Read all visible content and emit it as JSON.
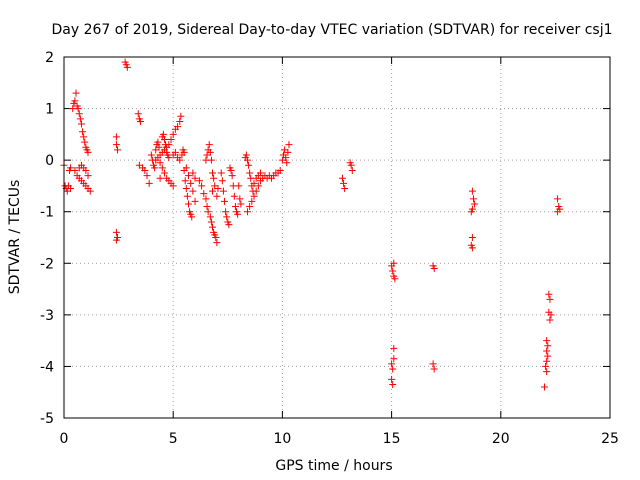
{
  "chart_data": {
    "type": "scatter",
    "title": "Day 267 of 2019, Sidereal Day-to-day VTEC variation (SDTVAR) for receiver csj1",
    "xlabel": "GPS time / hours",
    "ylabel": "SDTVAR / TECUs",
    "xlim": [
      0,
      25
    ],
    "ylim": [
      -5,
      2
    ],
    "xticks": [
      0,
      5,
      10,
      15,
      20,
      25
    ],
    "yticks": [
      -5,
      -4,
      -3,
      -2,
      -1,
      0,
      1,
      2
    ],
    "xtick_labels": [
      "0",
      "5",
      "10",
      "15",
      "20",
      "25"
    ],
    "ytick_labels": [
      "-5",
      "-4",
      "-3",
      "-2",
      "-1",
      "0",
      "1",
      "2"
    ],
    "grid": true,
    "marker": "+",
    "color": "#ff0000",
    "series": [
      {
        "name": "SDTVAR",
        "points": [
          [
            0.0,
            -0.1
          ],
          [
            0.05,
            -0.5
          ],
          [
            0.1,
            -0.55
          ],
          [
            0.15,
            -0.6
          ],
          [
            0.2,
            -0.5
          ],
          [
            0.25,
            -0.2
          ],
          [
            0.3,
            -0.15
          ],
          [
            0.3,
            -0.55
          ],
          [
            0.4,
            1.0
          ],
          [
            0.45,
            1.1
          ],
          [
            0.5,
            1.15
          ],
          [
            0.55,
            1.3
          ],
          [
            0.6,
            1.05
          ],
          [
            0.65,
            1.0
          ],
          [
            0.7,
            0.9
          ],
          [
            0.75,
            0.8
          ],
          [
            0.8,
            0.7
          ],
          [
            0.85,
            0.55
          ],
          [
            0.9,
            0.45
          ],
          [
            0.95,
            0.35
          ],
          [
            1.0,
            0.25
          ],
          [
            1.05,
            0.2
          ],
          [
            1.1,
            0.15
          ],
          [
            0.5,
            -0.2
          ],
          [
            0.6,
            -0.3
          ],
          [
            0.7,
            -0.35
          ],
          [
            0.8,
            -0.4
          ],
          [
            0.9,
            -0.45
          ],
          [
            1.0,
            -0.5
          ],
          [
            1.1,
            -0.55
          ],
          [
            1.2,
            -0.6
          ],
          [
            0.7,
            -0.15
          ],
          [
            0.8,
            -0.1
          ],
          [
            0.9,
            -0.15
          ],
          [
            1.0,
            -0.2
          ],
          [
            1.1,
            -0.3
          ],
          [
            2.4,
            0.45
          ],
          [
            2.4,
            0.3
          ],
          [
            2.45,
            0.2
          ],
          [
            2.4,
            -1.4
          ],
          [
            2.45,
            -1.5
          ],
          [
            2.4,
            -1.55
          ],
          [
            2.8,
            1.9
          ],
          [
            2.85,
            1.85
          ],
          [
            2.9,
            1.8
          ],
          [
            3.4,
            0.9
          ],
          [
            3.45,
            0.8
          ],
          [
            3.5,
            0.75
          ],
          [
            3.45,
            -0.1
          ],
          [
            3.6,
            -0.15
          ],
          [
            3.7,
            -0.2
          ],
          [
            3.8,
            -0.3
          ],
          [
            3.9,
            -0.45
          ],
          [
            4.0,
            0.1
          ],
          [
            4.05,
            0.0
          ],
          [
            4.1,
            -0.1
          ],
          [
            4.15,
            -0.15
          ],
          [
            4.2,
            0.2
          ],
          [
            4.25,
            0.3
          ],
          [
            4.3,
            0.35
          ],
          [
            4.35,
            0.25
          ],
          [
            4.4,
            -0.35
          ],
          [
            4.5,
            0.45
          ],
          [
            4.55,
            0.5
          ],
          [
            4.6,
            0.4
          ],
          [
            4.65,
            0.3
          ],
          [
            4.7,
            0.15
          ],
          [
            4.75,
            0.1
          ],
          [
            4.8,
            0.05
          ],
          [
            4.2,
            0.0
          ],
          [
            4.3,
            0.05
          ],
          [
            4.4,
            0.1
          ],
          [
            4.5,
            0.15
          ],
          [
            4.6,
            0.2
          ],
          [
            4.7,
            0.25
          ],
          [
            4.8,
            0.3
          ],
          [
            4.9,
            0.4
          ],
          [
            5.0,
            0.5
          ],
          [
            5.1,
            0.6
          ],
          [
            5.2,
            0.65
          ],
          [
            5.3,
            0.75
          ],
          [
            5.35,
            0.85
          ],
          [
            4.4,
            -0.05
          ],
          [
            4.5,
            -0.15
          ],
          [
            4.6,
            -0.25
          ],
          [
            4.7,
            -0.35
          ],
          [
            4.8,
            -0.4
          ],
          [
            4.9,
            -0.45
          ],
          [
            5.0,
            -0.5
          ],
          [
            5.0,
            0.1
          ],
          [
            5.1,
            0.15
          ],
          [
            5.2,
            0.05
          ],
          [
            5.3,
            0.0
          ],
          [
            5.4,
            0.1
          ],
          [
            5.45,
            0.2
          ],
          [
            5.5,
            0.15
          ],
          [
            5.5,
            -0.2
          ],
          [
            5.55,
            -0.4
          ],
          [
            5.6,
            -0.55
          ],
          [
            5.65,
            -0.7
          ],
          [
            5.7,
            -0.85
          ],
          [
            5.75,
            -1.0
          ],
          [
            5.8,
            -1.05
          ],
          [
            5.85,
            -1.1
          ],
          [
            5.6,
            -0.15
          ],
          [
            5.7,
            -0.3
          ],
          [
            5.8,
            -0.45
          ],
          [
            5.9,
            -0.6
          ],
          [
            6.0,
            -0.8
          ],
          [
            5.9,
            -0.25
          ],
          [
            6.0,
            -0.35
          ],
          [
            6.2,
            -0.4
          ],
          [
            6.3,
            -0.5
          ],
          [
            6.4,
            -0.65
          ],
          [
            6.5,
            -0.75
          ],
          [
            6.55,
            -0.9
          ],
          [
            6.6,
            -1.0
          ],
          [
            6.5,
            0.0
          ],
          [
            6.55,
            0.1
          ],
          [
            6.6,
            0.2
          ],
          [
            6.65,
            0.3
          ],
          [
            6.7,
            0.15
          ],
          [
            6.75,
            0.0
          ],
          [
            6.8,
            -0.25
          ],
          [
            6.8,
            -0.6
          ],
          [
            6.7,
            -1.1
          ],
          [
            6.75,
            -1.2
          ],
          [
            6.8,
            -1.3
          ],
          [
            6.85,
            -1.4
          ],
          [
            6.9,
            -1.45
          ],
          [
            6.95,
            -1.5
          ],
          [
            7.0,
            -1.6
          ],
          [
            6.85,
            -0.35
          ],
          [
            6.9,
            -0.5
          ],
          [
            7.0,
            -0.7
          ],
          [
            7.05,
            -0.55
          ],
          [
            7.2,
            -0.25
          ],
          [
            7.25,
            -0.4
          ],
          [
            7.3,
            -0.6
          ],
          [
            7.35,
            -0.8
          ],
          [
            7.4,
            -1.0
          ],
          [
            7.45,
            -1.1
          ],
          [
            7.5,
            -1.2
          ],
          [
            7.55,
            -1.25
          ],
          [
            7.6,
            -0.15
          ],
          [
            7.65,
            -0.2
          ],
          [
            7.7,
            -0.3
          ],
          [
            7.75,
            -0.5
          ],
          [
            7.8,
            -0.7
          ],
          [
            7.85,
            -0.9
          ],
          [
            7.9,
            -1.0
          ],
          [
            7.95,
            -1.05
          ],
          [
            8.0,
            -0.5
          ],
          [
            8.05,
            -0.75
          ],
          [
            8.1,
            -0.85
          ],
          [
            8.3,
            0.05
          ],
          [
            8.35,
            0.1
          ],
          [
            8.4,
            0.0
          ],
          [
            8.45,
            -0.1
          ],
          [
            8.5,
            -0.25
          ],
          [
            8.55,
            -0.35
          ],
          [
            8.6,
            -0.5
          ],
          [
            8.65,
            -0.6
          ],
          [
            8.4,
            -1.0
          ],
          [
            8.5,
            -0.9
          ],
          [
            8.6,
            -0.8
          ],
          [
            8.7,
            -0.7
          ],
          [
            8.8,
            -0.6
          ],
          [
            8.9,
            -0.5
          ],
          [
            9.0,
            -0.4
          ],
          [
            9.1,
            -0.35
          ],
          [
            9.2,
            -0.3
          ],
          [
            9.3,
            -0.35
          ],
          [
            9.4,
            -0.3
          ],
          [
            9.5,
            -0.35
          ],
          [
            9.6,
            -0.3
          ],
          [
            9.7,
            -0.25
          ],
          [
            9.8,
            -0.25
          ],
          [
            9.9,
            -0.2
          ],
          [
            8.7,
            -0.45
          ],
          [
            8.8,
            -0.35
          ],
          [
            8.9,
            -0.3
          ],
          [
            9.0,
            -0.25
          ],
          [
            10.0,
            0.0
          ],
          [
            10.05,
            0.1
          ],
          [
            10.1,
            0.2
          ],
          [
            10.15,
            0.05
          ],
          [
            10.2,
            -0.05
          ],
          [
            10.25,
            0.15
          ],
          [
            10.3,
            0.3
          ],
          [
            12.75,
            -0.35
          ],
          [
            12.8,
            -0.45
          ],
          [
            12.85,
            -0.55
          ],
          [
            13.1,
            -0.05
          ],
          [
            13.15,
            -0.1
          ],
          [
            13.2,
            -0.2
          ],
          [
            15.0,
            -2.05
          ],
          [
            15.05,
            -2.15
          ],
          [
            15.1,
            -2.25
          ],
          [
            15.15,
            -2.3
          ],
          [
            15.1,
            -2.0
          ],
          [
            15.0,
            -3.95
          ],
          [
            15.05,
            -4.05
          ],
          [
            15.1,
            -3.85
          ],
          [
            15.1,
            -3.65
          ],
          [
            15.0,
            -4.25
          ],
          [
            15.05,
            -4.35
          ],
          [
            16.9,
            -2.05
          ],
          [
            16.95,
            -2.1
          ],
          [
            16.9,
            -3.95
          ],
          [
            16.95,
            -4.05
          ],
          [
            18.7,
            -0.6
          ],
          [
            18.75,
            -0.75
          ],
          [
            18.8,
            -0.85
          ],
          [
            18.7,
            -0.95
          ],
          [
            18.65,
            -1.0
          ],
          [
            18.7,
            -1.5
          ],
          [
            18.65,
            -1.65
          ],
          [
            18.7,
            -1.7
          ],
          [
            22.1,
            -3.5
          ],
          [
            22.15,
            -3.6
          ],
          [
            22.1,
            -3.7
          ],
          [
            22.15,
            -3.8
          ],
          [
            22.1,
            -3.9
          ],
          [
            22.05,
            -4.0
          ],
          [
            22.1,
            -4.1
          ],
          [
            22.0,
            -4.4
          ],
          [
            22.2,
            -2.6
          ],
          [
            22.25,
            -2.7
          ],
          [
            22.2,
            -2.95
          ],
          [
            22.3,
            -3.0
          ],
          [
            22.25,
            -3.1
          ],
          [
            22.6,
            -0.75
          ],
          [
            22.65,
            -0.9
          ],
          [
            22.7,
            -0.95
          ],
          [
            22.6,
            -1.0
          ]
        ]
      }
    ]
  }
}
